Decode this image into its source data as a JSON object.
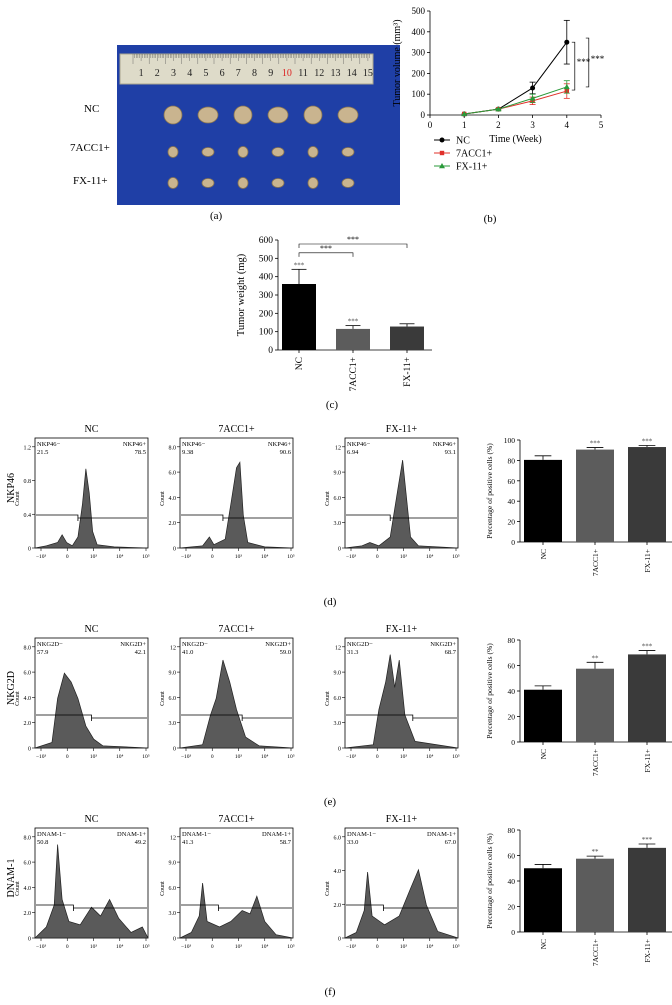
{
  "panel_labels": {
    "a": "(a)",
    "b": "(b)",
    "c": "(c)",
    "d": "(d)",
    "e": "(e)",
    "f": "(f)"
  },
  "photo": {
    "ruler_numbers": [
      "1",
      "2",
      "3",
      "4",
      "5",
      "6",
      "7",
      "8",
      "9",
      "10",
      "11",
      "12",
      "13",
      "14",
      "15"
    ],
    "row_labels": [
      "NC",
      "7ACC1+",
      "FX-11+"
    ],
    "colors": {
      "background": "#1f3fa6",
      "ruler": "#dedbc9",
      "tumor": "#c9b48f"
    }
  },
  "chart_data": [
    {
      "id": "b",
      "type": "line",
      "ylabel": "Tumor volume (mm³)",
      "xlabel": "Time (Week)",
      "x": [
        1,
        2,
        3,
        4
      ],
      "xlim": [
        0,
        5
      ],
      "xticks": [
        "0",
        "1",
        "2",
        "3",
        "4",
        "5"
      ],
      "ylim": [
        0,
        500
      ],
      "yticks": [
        "0",
        "100",
        "200",
        "300",
        "400",
        "500"
      ],
      "series": [
        {
          "name": "NC",
          "color": "#000000",
          "marker": "circle",
          "values": [
            5,
            28,
            130,
            350
          ],
          "err": [
            0,
            4,
            28,
            105
          ]
        },
        {
          "name": "7ACC1+",
          "color": "#e0302a",
          "marker": "square",
          "values": [
            5,
            28,
            68,
            115
          ],
          "err": [
            0,
            4,
            18,
            35
          ]
        },
        {
          "name": "FX-11+",
          "color": "#2a9a3a",
          "marker": "triangle",
          "values": [
            5,
            28,
            80,
            135
          ],
          "err": [
            0,
            4,
            20,
            30
          ]
        }
      ],
      "sig": [
        "***",
        "***"
      ]
    },
    {
      "id": "c",
      "type": "bar",
      "ylabel": "Tumor weight (mg)",
      "categories": [
        "NC",
        "7ACC1+",
        "FX-11+"
      ],
      "values": [
        360,
        115,
        128
      ],
      "err": [
        80,
        18,
        15
      ],
      "ylim": [
        0,
        600
      ],
      "yticks": [
        "0",
        "100",
        "200",
        "300",
        "400",
        "500",
        "600"
      ],
      "colors": [
        "#000000",
        "#5c5c5c",
        "#3a3a3a"
      ],
      "sig": [
        "***",
        "***"
      ]
    },
    {
      "id": "d",
      "type": "bar",
      "ylabel": "Percentage of positive cells (%)",
      "categories": [
        "NC",
        "7ACC1+",
        "FX-11+"
      ],
      "values": [
        80.5,
        90.6,
        93.1
      ],
      "err": [
        4,
        2,
        1.5
      ],
      "ylim": [
        0,
        100
      ],
      "yticks": [
        "0",
        "20",
        "40",
        "60",
        "80",
        "100"
      ],
      "colors": [
        "#000000",
        "#5c5c5c",
        "#3a3a3a"
      ],
      "sig": [
        "",
        "***",
        "***"
      ]
    },
    {
      "id": "e",
      "type": "bar",
      "ylabel": "Percentage of positive cells (%)",
      "categories": [
        "NC",
        "7ACC1+",
        "FX-11+"
      ],
      "values": [
        41,
        57.5,
        68.7
      ],
      "err": [
        3,
        5,
        3
      ],
      "ylim": [
        0,
        80
      ],
      "yticks": [
        "0",
        "20",
        "40",
        "60",
        "80"
      ],
      "colors": [
        "#000000",
        "#5c5c5c",
        "#3a3a3a"
      ],
      "sig": [
        "",
        "**",
        "***"
      ]
    },
    {
      "id": "f",
      "type": "bar",
      "ylabel": "Percentage of positive cells (%)",
      "categories": [
        "NC",
        "7ACC1+",
        "FX-11+"
      ],
      "values": [
        50,
        57.5,
        66
      ],
      "err": [
        3,
        2,
        3
      ],
      "ylim": [
        0,
        80
      ],
      "yticks": [
        "0",
        "20",
        "40",
        "60",
        "80"
      ],
      "colors": [
        "#000000",
        "#5c5c5c",
        "#3a3a3a"
      ],
      "sig": [
        "",
        "**",
        "***"
      ]
    }
  ],
  "flow": {
    "rows": [
      {
        "marker": "NKP46",
        "ymax": "12",
        "plots": [
          {
            "title": "NC",
            "neg_label": "NKP46−",
            "neg_value": "21.5",
            "pos_label": "NKP46+",
            "pos_value": "78.5",
            "yticks": [
              "0",
              "0.4",
              "0.8",
              "1.2"
            ],
            "yunit": "Count"
          },
          {
            "title": "7ACC1+",
            "neg_label": "NKP46−",
            "neg_value": "9.38",
            "pos_label": "NKP46+",
            "pos_value": "90.6",
            "yticks": [
              "0",
              "2.0",
              "4.0",
              "6.0",
              "8.0"
            ],
            "yunit": "Count"
          },
          {
            "title": "FX-11+",
            "neg_label": "NKP46−",
            "neg_value": "6.94",
            "pos_label": "NKP46+",
            "pos_value": "93.1",
            "yticks": [
              "0",
              "3.0",
              "6.0",
              "9.0",
              "12"
            ],
            "yunit": "Count"
          }
        ]
      },
      {
        "marker": "NKG2D",
        "plots": [
          {
            "title": "NC",
            "neg_label": "NKG2D−",
            "neg_value": "57.9",
            "pos_label": "NKG2D+",
            "pos_value": "42.1",
            "yticks": [
              "0",
              "2.0",
              "4.0",
              "6.0",
              "8.0"
            ],
            "yunit": "Count"
          },
          {
            "title": "7ACC1+",
            "neg_label": "NKG2D−",
            "neg_value": "41.0",
            "pos_label": "NKG2D+",
            "pos_value": "59.0",
            "yticks": [
              "0",
              "3.0",
              "6.0",
              "9.0",
              "12"
            ],
            "yunit": "Count"
          },
          {
            "title": "FX-11+",
            "neg_label": "NKG2D−",
            "neg_value": "31.3",
            "pos_label": "NKG2D+",
            "pos_value": "68.7",
            "yticks": [
              "0",
              "3.0",
              "6.0",
              "9.0",
              "12"
            ],
            "yunit": "Count"
          }
        ]
      },
      {
        "marker": "DNAM-1",
        "plots": [
          {
            "title": "NC",
            "neg_label": "DNAM-1−",
            "neg_value": "50.8",
            "pos_label": "DNAM-1+",
            "pos_value": "49.2",
            "yticks": [
              "0",
              "2.0",
              "4.0",
              "6.0",
              "8.0"
            ],
            "yunit": "Count"
          },
          {
            "title": "7ACC1+",
            "neg_label": "DNAM-1−",
            "neg_value": "41.3",
            "pos_label": "DNAM-1+",
            "pos_value": "58.7",
            "yticks": [
              "0",
              "3.0",
              "6.0",
              "9.0",
              "12"
            ],
            "yunit": "Count"
          },
          {
            "title": "FX-11+",
            "neg_label": "DNAM-1−",
            "neg_value": "33.0",
            "pos_label": "DNAM-1+",
            "pos_value": "67.0",
            "yticks": [
              "0",
              "2.0",
              "4.0",
              "6.0"
            ],
            "yunit": "Count"
          }
        ]
      }
    ],
    "xticks": [
      "−10³",
      "0",
      "10³",
      "10⁴",
      "10⁵"
    ]
  }
}
